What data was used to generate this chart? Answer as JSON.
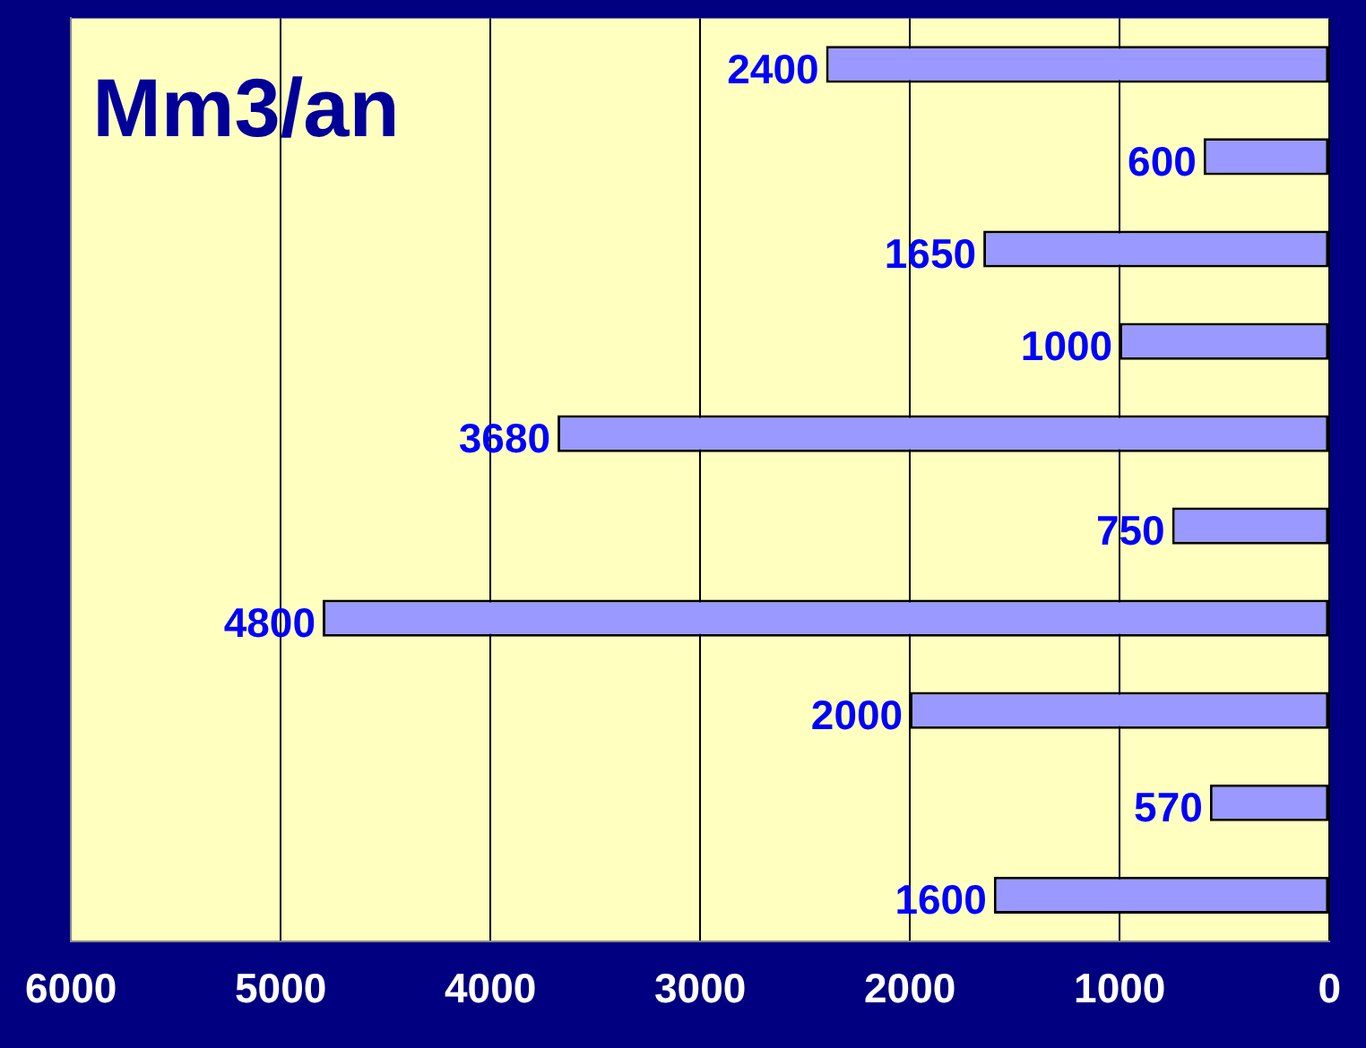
{
  "chart_data": {
    "type": "bar",
    "orientation": "horizontal",
    "title": "Mm3/an",
    "categories": [
      null,
      null,
      null,
      null,
      null,
      null,
      null,
      null,
      null,
      null
    ],
    "values": [
      2400,
      600,
      1650,
      1000,
      3680,
      750,
      4800,
      2000,
      570,
      1600
    ],
    "color": "#9999ff",
    "xlim": [
      6000,
      0
    ],
    "xticks": [
      6000,
      5000,
      4000,
      3000,
      2000,
      1000,
      0
    ],
    "grid": "x",
    "data_labels": true,
    "legend": false
  }
}
